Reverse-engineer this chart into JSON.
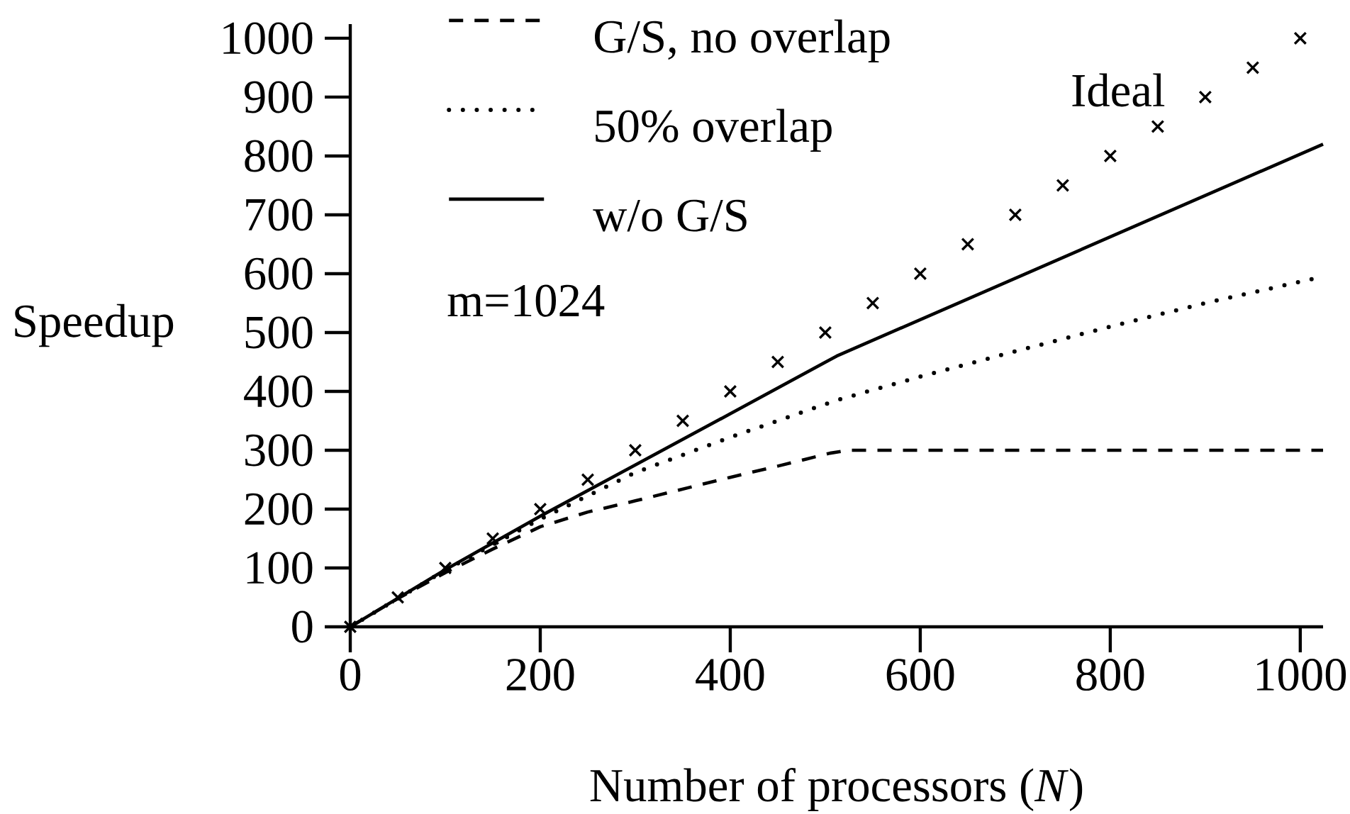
{
  "chart_data": {
    "type": "line",
    "xlabel": "Number of processors (*N*)",
    "ylabel": "Speedup",
    "annotations": [
      "m=1024"
    ],
    "xlim": [
      0,
      1024
    ],
    "ylim": [
      0,
      1024
    ],
    "xticks": [
      0,
      200,
      400,
      600,
      800,
      1000
    ],
    "yticks": [
      0,
      100,
      200,
      300,
      400,
      500,
      600,
      700,
      800,
      900,
      1000
    ],
    "legend": "top left",
    "series": [
      {
        "name": "G/S, no overlap",
        "color": "#000000",
        "line_style": "dashed",
        "x": [
          0,
          50,
          100,
          150,
          200,
          250,
          300,
          350,
          400,
          450,
          480,
          505,
          525,
          1024
        ],
        "values": [
          0,
          48,
          92,
          132,
          170,
          195,
          214,
          234,
          254,
          273,
          285,
          295,
          300,
          300
        ]
      },
      {
        "name": "50% overlap",
        "color": "#000000",
        "line_style": "dotted",
        "x": [
          0,
          100,
          200,
          300,
          400,
          512,
          600,
          700,
          800,
          900,
          1024
        ],
        "values": [
          0,
          96,
          183,
          262,
          322,
          385,
          425,
          468,
          510,
          550,
          595
        ]
      },
      {
        "name": "w/o G/S",
        "color": "#000000",
        "line_style": "solid",
        "x": [
          0,
          100,
          200,
          300,
          400,
          512,
          1024
        ],
        "values": [
          0,
          97,
          188,
          275,
          362,
          460,
          820
        ]
      },
      {
        "name": "Ideal",
        "type": "scatter",
        "marker": "cross",
        "color": "#000000",
        "x": [
          0,
          50,
          100,
          150,
          200,
          250,
          300,
          350,
          400,
          450,
          500,
          550,
          600,
          650,
          700,
          750,
          800,
          850,
          900,
          950,
          1000
        ],
        "values": [
          0,
          50,
          100,
          150,
          200,
          250,
          300,
          350,
          400,
          450,
          500,
          550,
          600,
          650,
          700,
          750,
          800,
          850,
          900,
          950,
          1000
        ]
      }
    ]
  }
}
